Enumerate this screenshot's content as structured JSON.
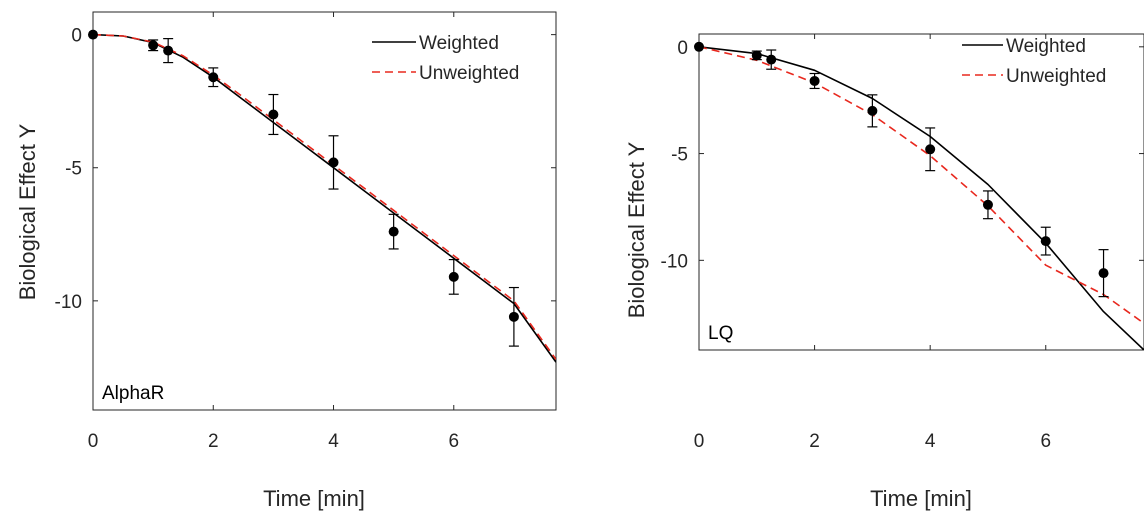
{
  "chart_data": [
    {
      "type": "scatter",
      "panel_label": "AlphaR",
      "xlabel": "Time [min]",
      "ylabel": "Biological Effect Y",
      "xlim": [
        0,
        7.7
      ],
      "ylim": [
        -14.1,
        0.85
      ],
      "xticks": [
        0,
        2,
        4,
        6
      ],
      "yticks": [
        0,
        -5,
        -10
      ],
      "grid": false,
      "legend_position": "top-right",
      "points": {
        "x": [
          0,
          1,
          1.25,
          2,
          3,
          4,
          5,
          6,
          7
        ],
        "y": [
          0,
          -0.4,
          -0.6,
          -1.6,
          -3.0,
          -4.8,
          -7.4,
          -9.1,
          -10.6
        ],
        "err": [
          0,
          0.2,
          0.45,
          0.35,
          0.75,
          1.0,
          0.65,
          0.65,
          1.1
        ]
      },
      "series": [
        {
          "name": "Weighted",
          "style": "solid",
          "color": "#000000",
          "x": [
            0,
            0.5,
            1,
            1.5,
            2,
            2.5,
            3,
            3.5,
            4,
            4.5,
            5,
            5.5,
            6,
            6.5,
            7,
            7.7
          ],
          "y": [
            0,
            -0.05,
            -0.3,
            -0.85,
            -1.6,
            -2.45,
            -3.3,
            -4.15,
            -5.0,
            -5.85,
            -6.7,
            -7.55,
            -8.4,
            -9.25,
            -10.1,
            -12.3
          ]
        },
        {
          "name": "Unweighted",
          "style": "dashed",
          "color": "#e8281e",
          "x": [
            0,
            0.5,
            1,
            1.5,
            2,
            2.5,
            3,
            3.5,
            4,
            4.5,
            5,
            5.5,
            6,
            6.5,
            7,
            7.7
          ],
          "y": [
            0,
            -0.05,
            -0.28,
            -0.8,
            -1.52,
            -2.35,
            -3.2,
            -4.05,
            -4.9,
            -5.75,
            -6.6,
            -7.45,
            -8.3,
            -9.15,
            -10.0,
            -12.2
          ]
        }
      ]
    },
    {
      "type": "scatter",
      "panel_label": "LQ",
      "xlabel": "Time [min]",
      "ylabel": "Biological Effect Y",
      "xlim": [
        0,
        7.7
      ],
      "ylim": [
        -14.2,
        0.6
      ],
      "xticks": [
        0,
        2,
        4,
        6
      ],
      "yticks": [
        0,
        -5,
        -10
      ],
      "grid": false,
      "legend_position": "top-right",
      "points": {
        "x": [
          0,
          1,
          1.25,
          2,
          3,
          4,
          5,
          6,
          7
        ],
        "y": [
          0,
          -0.4,
          -0.6,
          -1.6,
          -3.0,
          -4.8,
          -7.4,
          -9.1,
          -10.6
        ],
        "err": [
          0,
          0.2,
          0.45,
          0.35,
          0.75,
          1.0,
          0.65,
          0.65,
          1.1
        ]
      },
      "series": [
        {
          "name": "Weighted",
          "style": "solid",
          "color": "#000000",
          "x": [
            0,
            1,
            2,
            3,
            4,
            5,
            6,
            7,
            7.7
          ],
          "y": [
            0,
            -0.32,
            -1.1,
            -2.42,
            -4.2,
            -6.45,
            -9.2,
            -12.4,
            -14.2
          ]
        },
        {
          "name": "Unweighted",
          "style": "dashed",
          "color": "#e8281e",
          "x": [
            0,
            1,
            2,
            3,
            4,
            5,
            6,
            7,
            7.7
          ],
          "y": [
            0,
            -0.63,
            -1.69,
            -3.18,
            -5.1,
            -7.45,
            -10.23,
            -11.6,
            -12.95
          ]
        }
      ]
    }
  ]
}
